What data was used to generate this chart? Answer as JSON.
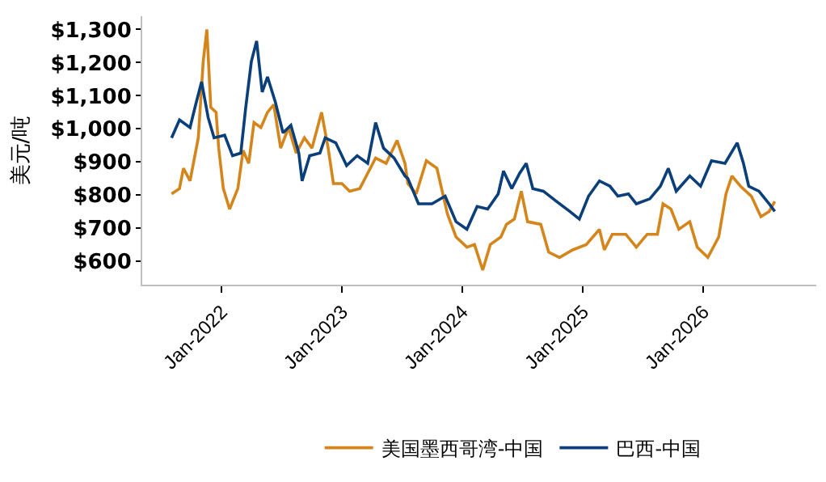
{
  "chart_data": {
    "type": "line",
    "ylabel": "美元/吨",
    "legend": "bottom",
    "marker": "none",
    "line_style": "solid",
    "xlim": [
      "2021-05-05",
      "2026-12-10"
    ],
    "ylim": [
      530,
      1340
    ],
    "xticks": [
      {
        "value": "2022-01-01",
        "label": "Jan-2022"
      },
      {
        "value": "2023-01-01",
        "label": "Jan-2023"
      },
      {
        "value": "2024-01-01",
        "label": "Jan-2024"
      },
      {
        "value": "2025-01-01",
        "label": "Jan-2025"
      },
      {
        "value": "2026-01-01",
        "label": "Jan-2026"
      }
    ],
    "yticks": [
      {
        "value": 600,
        "label": "$600"
      },
      {
        "value": 700,
        "label": "$700"
      },
      {
        "value": 800,
        "label": "$800"
      },
      {
        "value": 900,
        "label": "$900"
      },
      {
        "value": 1000,
        "label": "$1,000"
      },
      {
        "value": 1100,
        "label": "$1,100"
      },
      {
        "value": 1200,
        "label": "$1,200"
      },
      {
        "value": 1300,
        "label": "$1,300"
      }
    ],
    "series": [
      {
        "name": "美国墨西哥湾-中国",
        "color": "#d4861c",
        "x": [
          "2021-08-02",
          "2021-08-26",
          "2021-09-07",
          "2021-09-27",
          "2021-10-22",
          "2021-11-06",
          "2021-11-17",
          "2021-11-29",
          "2021-12-15",
          "2021-12-23",
          "2022-01-06",
          "2022-01-25",
          "2022-02-19",
          "2022-03-07",
          "2022-03-24",
          "2022-04-09",
          "2022-04-30",
          "2022-05-20",
          "2022-06-08",
          "2022-06-29",
          "2022-07-23",
          "2022-08-15",
          "2022-09-09",
          "2022-10-02",
          "2022-10-31",
          "2022-11-20",
          "2022-12-06",
          "2023-01-01",
          "2023-01-24",
          "2023-02-24",
          "2023-03-20",
          "2023-04-13",
          "2023-05-15",
          "2023-06-17",
          "2023-07-11",
          "2023-07-20",
          "2023-08-14",
          "2023-09-14",
          "2023-10-16",
          "2023-11-17",
          "2023-12-13",
          "2024-01-15",
          "2024-02-07",
          "2024-03-03",
          "2024-03-26",
          "2024-04-27",
          "2024-05-14",
          "2024-06-07",
          "2024-06-28",
          "2024-07-17",
          "2024-08-26",
          "2024-09-19",
          "2024-10-22",
          "2024-12-01",
          "2025-01-11",
          "2025-02-20",
          "2025-03-07",
          "2025-03-31",
          "2025-05-11",
          "2025-06-12",
          "2025-07-15",
          "2025-08-15",
          "2025-09-01",
          "2025-09-25",
          "2025-10-19",
          "2025-11-21",
          "2025-12-14",
          "2026-01-15",
          "2026-02-17",
          "2026-03-11",
          "2026-03-29",
          "2026-04-24",
          "2026-05-27",
          "2026-06-25",
          "2026-07-20",
          "2026-08-06"
        ],
        "values": [
          804,
          820,
          881,
          843,
          973,
          1203,
          1300,
          1065,
          1050,
          942,
          820,
          758,
          820,
          935,
          896,
          1019,
          1004,
          1050,
          1073,
          942,
          1004,
          927,
          973,
          942,
          1050,
          942,
          835,
          835,
          812,
          820,
          866,
          912,
          896,
          965,
          896,
          835,
          804,
          904,
          881,
          743,
          674,
          643,
          651,
          574,
          651,
          674,
          712,
          728,
          812,
          720,
          712,
          628,
          612,
          635,
          651,
          697,
          635,
          682,
          682,
          643,
          682,
          682,
          774,
          758,
          697,
          720,
          643,
          612,
          674,
          804,
          858,
          827,
          797,
          735,
          751,
          781
        ]
      },
      {
        "name": "巴西-中国",
        "color": "#0b3f7a",
        "x": [
          "2021-08-02",
          "2021-08-26",
          "2021-09-27",
          "2021-10-12",
          "2021-11-01",
          "2021-11-21",
          "2021-12-09",
          "2022-01-10",
          "2022-02-03",
          "2022-02-28",
          "2022-03-15",
          "2022-04-01",
          "2022-04-17",
          "2022-05-04",
          "2022-05-20",
          "2022-06-13",
          "2022-07-06",
          "2022-07-30",
          "2022-08-23",
          "2022-09-02",
          "2022-09-25",
          "2022-10-26",
          "2022-11-11",
          "2022-12-13",
          "2023-01-15",
          "2023-02-16",
          "2023-03-20",
          "2023-04-13",
          "2023-05-07",
          "2023-06-08",
          "2023-07-11",
          "2023-07-20",
          "2023-08-21",
          "2023-10-01",
          "2023-11-10",
          "2023-12-13",
          "2024-01-15",
          "2024-02-15",
          "2024-03-18",
          "2024-04-19",
          "2024-05-05",
          "2024-05-30",
          "2024-06-23",
          "2024-07-13",
          "2024-08-02",
          "2024-09-03",
          "2024-10-13",
          "2024-11-22",
          "2024-12-21",
          "2025-01-18",
          "2025-02-20",
          "2025-03-24",
          "2025-04-17",
          "2025-05-19",
          "2025-06-12",
          "2025-07-23",
          "2025-08-24",
          "2025-09-17",
          "2025-10-11",
          "2025-11-21",
          "2025-12-24",
          "2026-01-26",
          "2026-03-08",
          "2026-04-14",
          "2026-05-03",
          "2026-05-19",
          "2026-06-19",
          "2026-07-20",
          "2026-08-06"
        ],
        "values": [
          973,
          1027,
          1004,
          1065,
          1142,
          1034,
          973,
          981,
          919,
          927,
          1065,
          1203,
          1265,
          1111,
          1157,
          1080,
          988,
          1011,
          927,
          843,
          919,
          927,
          973,
          958,
          889,
          919,
          896,
          1019,
          942,
          912,
          858,
          850,
          774,
          774,
          797,
          720,
          697,
          766,
          758,
          804,
          873,
          820,
          866,
          896,
          820,
          812,
          781,
          751,
          728,
          797,
          843,
          827,
          797,
          804,
          774,
          789,
          827,
          881,
          812,
          858,
          827,
          904,
          896,
          958,
          896,
          827,
          812,
          774,
          751
        ]
      }
    ]
  }
}
